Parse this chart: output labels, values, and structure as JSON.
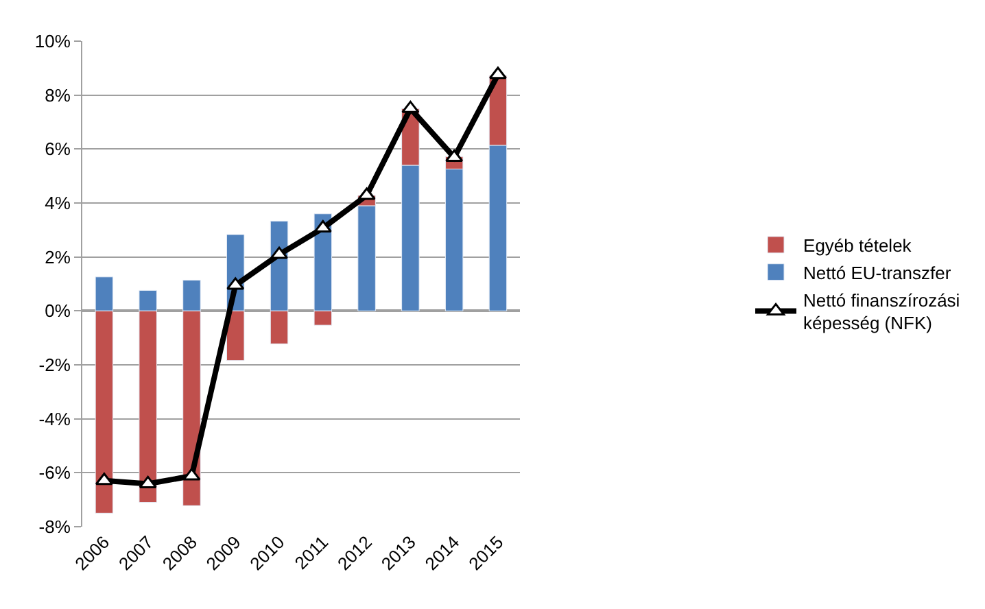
{
  "chart_data": {
    "type": "bar",
    "stacked": true,
    "categories": [
      "2006",
      "2007",
      "2008",
      "2009",
      "2010",
      "2011",
      "2012",
      "2013",
      "2014",
      "2015"
    ],
    "series": [
      {
        "name": "Nettó EU-transzfer",
        "color": "#4f81bd",
        "values": [
          1.26,
          0.76,
          1.14,
          2.83,
          3.33,
          3.6,
          3.9,
          5.4,
          5.26,
          6.14
        ]
      },
      {
        "name": "Egyéb tételek",
        "color": "#c0504d",
        "values": [
          -7.5,
          -7.1,
          -7.22,
          -1.84,
          -1.22,
          -0.53,
          0.38,
          2.1,
          0.46,
          2.58
        ]
      },
      {
        "name": "Nettó finanszírozási képesség (NFK)",
        "type": "line",
        "color": "#000000",
        "marker": "triangle",
        "values": [
          -6.29,
          -6.41,
          -6.12,
          0.95,
          2.09,
          3.07,
          4.28,
          7.5,
          5.69,
          8.76
        ]
      }
    ],
    "ylim": [
      -8,
      10
    ],
    "yticks": [
      {
        "value": -8,
        "label": "-8%"
      },
      {
        "value": -6,
        "label": "-6%"
      },
      {
        "value": -4,
        "label": "-4%"
      },
      {
        "value": -2,
        "label": "-2%"
      },
      {
        "value": 0,
        "label": "0%"
      },
      {
        "value": 2,
        "label": "2%"
      },
      {
        "value": 4,
        "label": "4%"
      },
      {
        "value": 6,
        "label": "6%"
      },
      {
        "value": 8,
        "label": "8%"
      },
      {
        "value": 10,
        "label": "10%"
      }
    ],
    "grid": "y",
    "legend": "right"
  }
}
